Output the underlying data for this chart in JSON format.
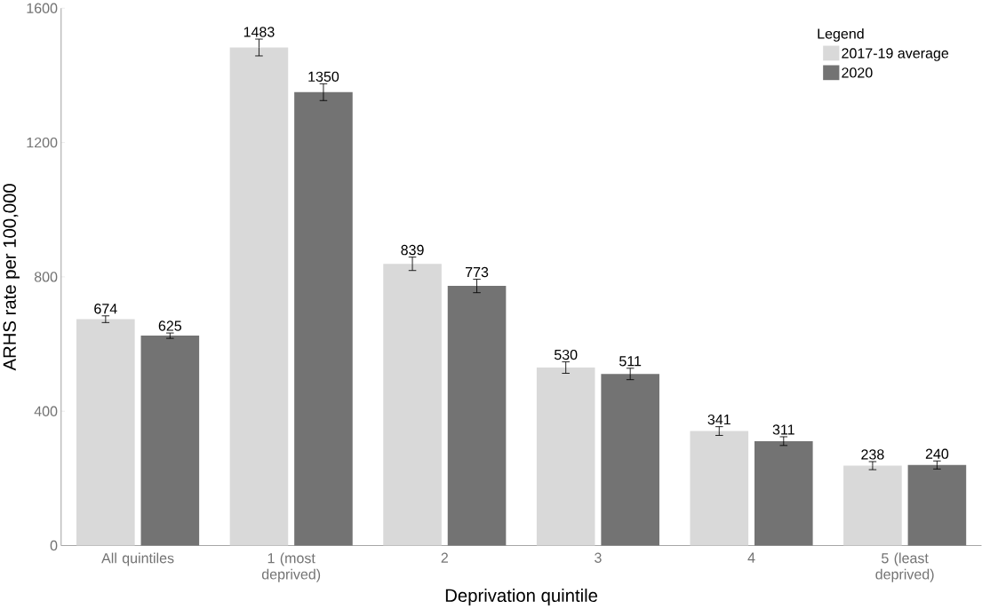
{
  "chart_data": {
    "type": "bar",
    "xlabel": "Deprivation quintile",
    "ylabel": "ARHS rate per 100,000",
    "legend_title": "Legend",
    "categories": [
      "All quintiles",
      "1 (most deprived)",
      "2",
      "3",
      "4",
      "5 (least deprived)"
    ],
    "series": [
      {
        "name": "2017-19 average",
        "color": "#d9d9d9",
        "values": [
          674,
          1483,
          839,
          530,
          341,
          238
        ],
        "errors": [
          10,
          25,
          20,
          17,
          13,
          12
        ]
      },
      {
        "name": "2020",
        "color": "#737373",
        "values": [
          625,
          1350,
          773,
          511,
          311,
          240
        ],
        "errors": [
          8,
          25,
          20,
          17,
          13,
          12
        ]
      }
    ],
    "ylim": [
      0,
      1600
    ],
    "yticks": [
      0,
      400,
      800,
      1200,
      1600
    ],
    "data_labels": true,
    "grid": false,
    "legend": "top right"
  }
}
